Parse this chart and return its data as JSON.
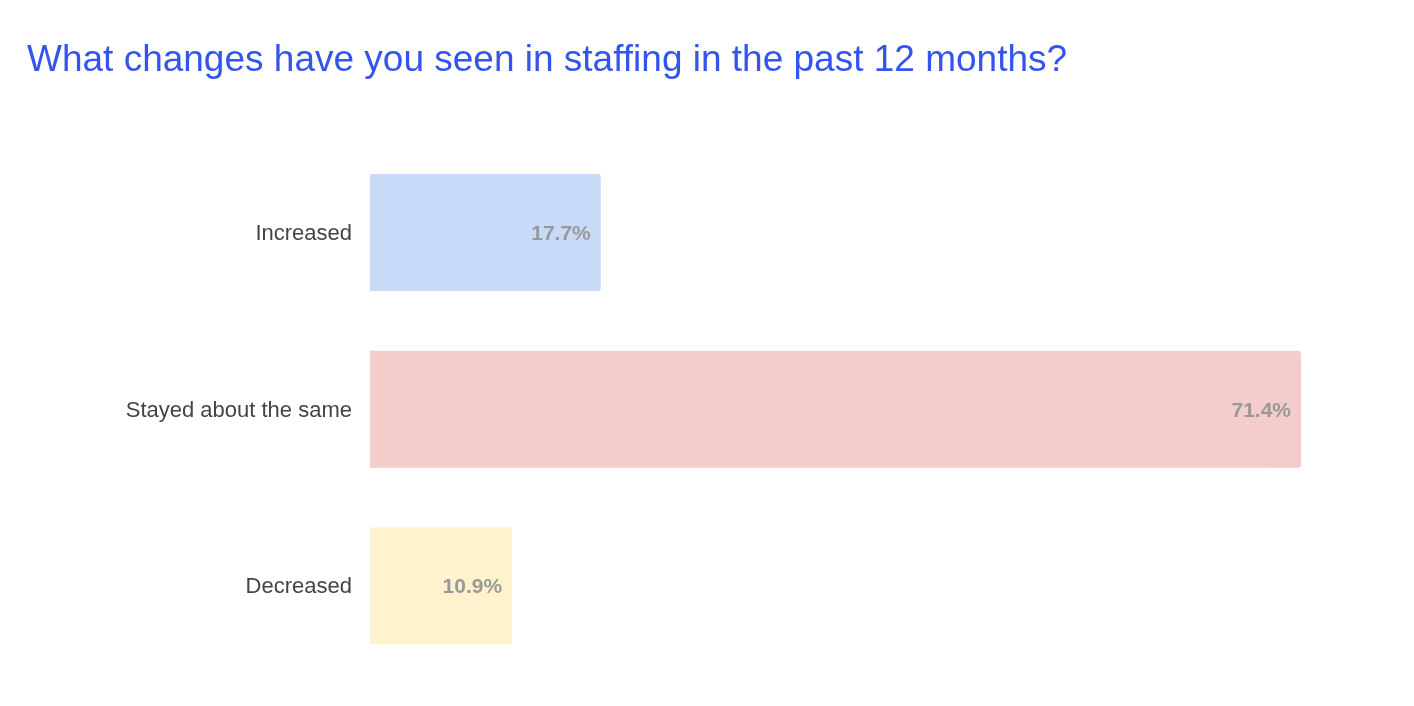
{
  "chart_data": {
    "type": "bar",
    "orientation": "horizontal",
    "title": "What changes have you seen in staffing in the past 12 months?",
    "categories": [
      "Increased",
      "Stayed about the same",
      "Decreased"
    ],
    "values": [
      17.7,
      71.4,
      10.9
    ],
    "colors": [
      "#c9daf8",
      "#f4cccc",
      "#fff2cc"
    ],
    "value_labels": [
      "17.7%",
      "71.4%",
      "10.9%"
    ],
    "grid": false,
    "legend": false
  }
}
